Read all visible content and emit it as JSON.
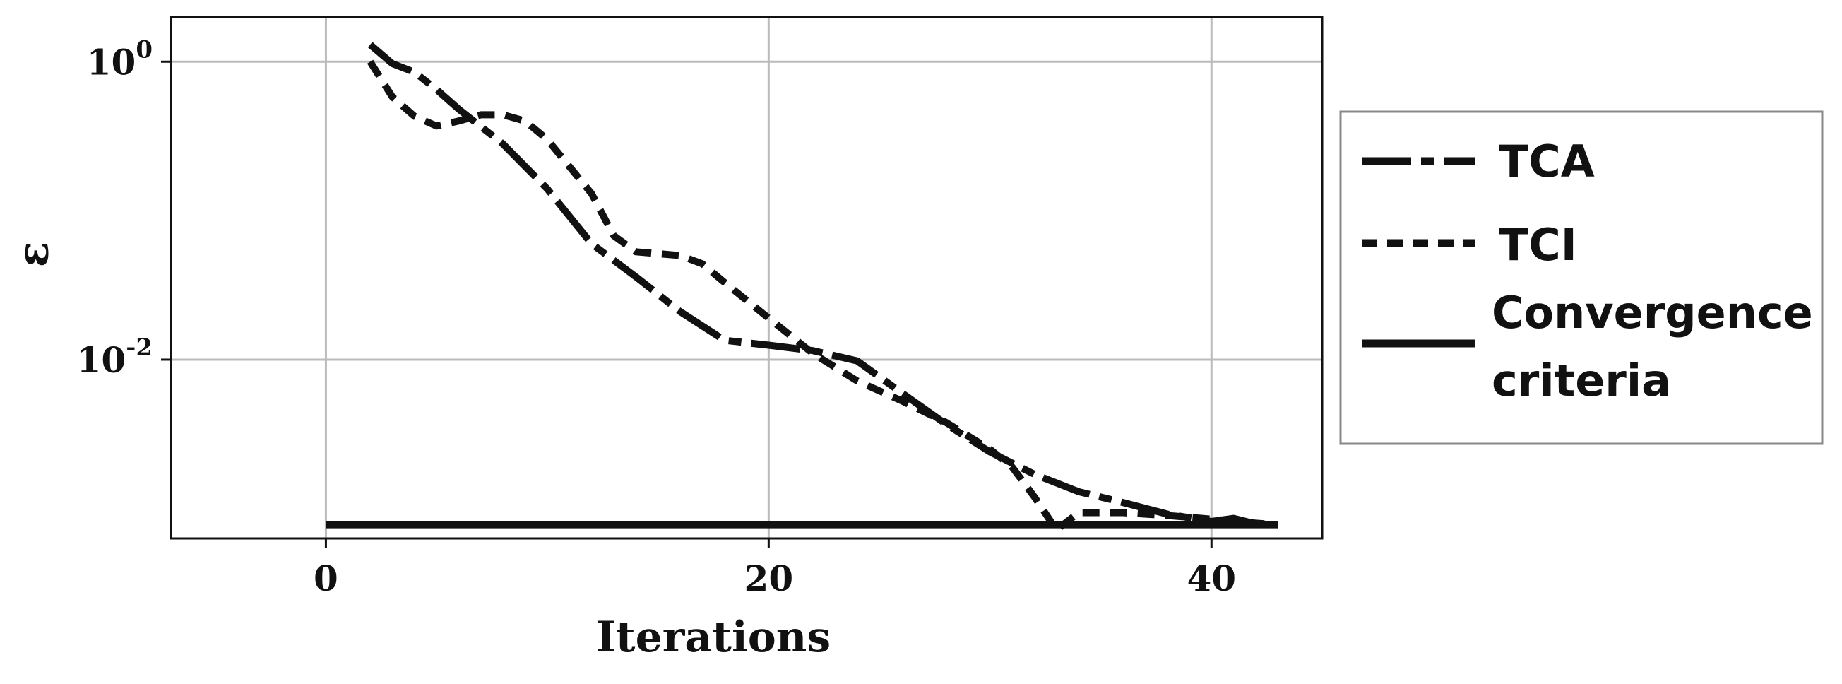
{
  "chart_data": {
    "type": "line",
    "xlabel": "Iterations",
    "ylabel": "ε",
    "xlim": [
      -7,
      45
    ],
    "ylim_log10": [
      -3.2,
      0.3
    ],
    "log_scale_y": true,
    "grid": true,
    "legend_position": "right-outside",
    "x_ticks": [
      {
        "value": 0,
        "label": "0"
      },
      {
        "value": 20,
        "label": "20"
      },
      {
        "value": 40,
        "label": "40"
      }
    ],
    "y_ticks": [
      {
        "value": 1,
        "base": "10",
        "exp": "0"
      },
      {
        "value": 0.01,
        "base": "10",
        "exp": "-2"
      }
    ],
    "series": [
      {
        "name": "TCA",
        "style": "dash-dot",
        "color": "#111111",
        "points": [
          [
            2,
            1.3
          ],
          [
            3,
            0.97
          ],
          [
            4,
            0.85
          ],
          [
            5,
            0.65
          ],
          [
            6,
            0.48
          ],
          [
            8,
            0.28
          ],
          [
            10,
            0.14
          ],
          [
            12,
            0.06
          ],
          [
            14,
            0.036
          ],
          [
            16,
            0.021
          ],
          [
            18,
            0.0135
          ],
          [
            20,
            0.0125
          ],
          [
            22,
            0.0115
          ],
          [
            24,
            0.0098
          ],
          [
            26,
            0.006
          ],
          [
            28,
            0.0037
          ],
          [
            30,
            0.0024
          ],
          [
            32,
            0.0017
          ],
          [
            34,
            0.0013
          ],
          [
            36,
            0.0011
          ],
          [
            38,
            0.00092
          ],
          [
            40,
            0.00082
          ],
          [
            41,
            0.00086
          ],
          [
            42,
            0.00079
          ],
          [
            43,
            0.00078
          ]
        ]
      },
      {
        "name": "TCI",
        "style": "dotted",
        "color": "#111111",
        "points": [
          [
            2,
            1.0
          ],
          [
            3,
            0.58
          ],
          [
            4,
            0.43
          ],
          [
            5,
            0.37
          ],
          [
            6,
            0.4
          ],
          [
            7,
            0.44
          ],
          [
            8,
            0.44
          ],
          [
            9,
            0.4
          ],
          [
            10,
            0.3
          ],
          [
            12,
            0.13
          ],
          [
            13,
            0.068
          ],
          [
            14,
            0.053
          ],
          [
            16,
            0.05
          ],
          [
            17,
            0.044
          ],
          [
            18,
            0.033
          ],
          [
            20,
            0.019
          ],
          [
            22,
            0.011
          ],
          [
            24,
            0.0072
          ],
          [
            26,
            0.0053
          ],
          [
            28,
            0.0038
          ],
          [
            30,
            0.0025
          ],
          [
            31,
            0.0019
          ],
          [
            32,
            0.0012
          ],
          [
            33,
            0.00072
          ],
          [
            34,
            0.00094
          ],
          [
            36,
            0.00094
          ],
          [
            38,
            0.0009
          ],
          [
            40,
            0.00085
          ],
          [
            42,
            0.0008
          ],
          [
            43,
            0.00078
          ]
        ]
      },
      {
        "name": "Convergence criteria",
        "legend_lines": [
          "Convergence",
          "criteria"
        ],
        "style": "solid",
        "color": "#111111",
        "points": [
          [
            0,
            0.00078
          ],
          [
            43,
            0.00078
          ]
        ]
      }
    ]
  }
}
